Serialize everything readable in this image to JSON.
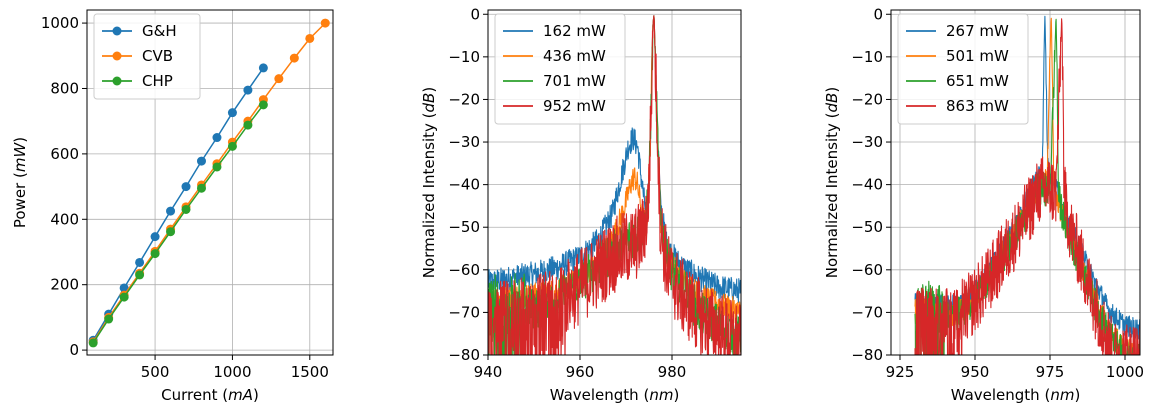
{
  "colors": {
    "blue": "#1f77b4",
    "orange": "#ff7f0e",
    "green": "#2ca02c",
    "red": "#d62728"
  },
  "chart_data": [
    {
      "type": "line",
      "title": "",
      "xlabel_main": "Current (",
      "xlabel_unit": "mA",
      "xlabel_close": ")",
      "ylabel_main": "Power (",
      "ylabel_unit": "mW",
      "ylabel_close": ")",
      "xlim": [
        60,
        1650
      ],
      "ylim": [
        -15,
        1040
      ],
      "xticks": [
        500,
        1000,
        1500
      ],
      "yticks": [
        0,
        200,
        400,
        600,
        800,
        1000
      ],
      "grid": true,
      "legend": "top-left",
      "markers": true,
      "series": [
        {
          "name": "G&H",
          "color": "#1f77b4",
          "x": [
            100,
            200,
            300,
            400,
            500,
            600,
            700,
            800,
            900,
            1000,
            1100,
            1200
          ],
          "y": [
            30,
            110,
            190,
            268,
            347,
            425,
            500,
            578,
            650,
            726,
            795,
            863
          ]
        },
        {
          "name": "CVB",
          "color": "#ff7f0e",
          "x": [
            100,
            200,
            300,
            400,
            500,
            600,
            700,
            800,
            900,
            1000,
            1100,
            1200,
            1300,
            1400,
            1500,
            1600
          ],
          "y": [
            25,
            100,
            168,
            235,
            302,
            370,
            438,
            505,
            570,
            636,
            700,
            766,
            830,
            893,
            953,
            1000
          ]
        },
        {
          "name": "CHP",
          "color": "#2ca02c",
          "x": [
            100,
            200,
            300,
            400,
            500,
            600,
            700,
            800,
            900,
            1000,
            1100,
            1200
          ],
          "y": [
            22,
            95,
            162,
            230,
            295,
            362,
            430,
            495,
            560,
            623,
            688,
            750
          ]
        }
      ]
    },
    {
      "type": "line",
      "title": "",
      "xlabel_main": "Wavelength (",
      "xlabel_unit": "nm",
      "xlabel_close": ")",
      "ylabel_main": "Normalized Intensity (",
      "ylabel_unit": "dB",
      "ylabel_close": ")",
      "xlim": [
        940,
        995
      ],
      "ylim": [
        -80,
        1
      ],
      "xticks": [
        940,
        960,
        980
      ],
      "yticks": [
        0,
        -10,
        -20,
        -30,
        -40,
        -50,
        -60,
        -70,
        -80
      ],
      "grid": true,
      "legend": "top-left",
      "markers": false,
      "noisy": true,
      "series": [
        {
          "name": "162 mW",
          "color": "#1f77b4",
          "noise": 3,
          "x": [
            940,
            945,
            950,
            955,
            960,
            964,
            967,
            969,
            970.5,
            971.5,
            972.5,
            973.5,
            974.5,
            975.3,
            975.8,
            976.1,
            976.6,
            977.5,
            979,
            982,
            986,
            990,
            995
          ],
          "y": [
            -63,
            -62,
            -61,
            -59.5,
            -57,
            -53,
            -47,
            -38,
            -31,
            -29,
            -31,
            -40,
            -48,
            -30,
            -3,
            0,
            -20,
            -45,
            -55,
            -59,
            -62,
            -64,
            -65
          ]
        },
        {
          "name": "436 mW",
          "color": "#ff7f0e",
          "noise": 3,
          "x": [
            940,
            945,
            950,
            955,
            960,
            964,
            967,
            969.5,
            971,
            971.8,
            972.5,
            973.5,
            974.5,
            975.3,
            975.8,
            976.1,
            976.6,
            977.5,
            979,
            982,
            986,
            990,
            995
          ],
          "y": [
            -67,
            -66.5,
            -66,
            -65,
            -62,
            -58,
            -53,
            -46,
            -40,
            -38,
            -40,
            -47,
            -50,
            -30,
            -3,
            0,
            -20,
            -48,
            -57,
            -62,
            -66,
            -68,
            -70
          ]
        },
        {
          "name": "701 mW",
          "color": "#2ca02c",
          "noise": 5,
          "noisyBelow": 948,
          "x": [
            940,
            945,
            950,
            955,
            960,
            964,
            967,
            970,
            972,
            973.5,
            974.8,
            975.5,
            975.9,
            976.1,
            976.6,
            977.5,
            979,
            982,
            986,
            990,
            995
          ],
          "y": [
            -70,
            -69.5,
            -69,
            -67,
            -63,
            -59,
            -56,
            -53,
            -52,
            -51,
            -45,
            -20,
            -2,
            0,
            -20,
            -48,
            -58,
            -64,
            -70,
            -73,
            -76
          ]
        },
        {
          "name": "952 mW",
          "color": "#d62728",
          "noise": 9,
          "noisyBelow": 957,
          "x": [
            940,
            945,
            950,
            955,
            960,
            964,
            967,
            970,
            972,
            973.5,
            974.8,
            975.5,
            975.9,
            976.1,
            976.6,
            977.5,
            979,
            982,
            986,
            990,
            995
          ],
          "y": [
            -72,
            -71,
            -70,
            -68,
            -64,
            -60,
            -57,
            -55,
            -54,
            -52,
            -46,
            -22,
            -2,
            0,
            -20,
            -50,
            -60,
            -66,
            -71,
            -74,
            -77
          ]
        }
      ]
    },
    {
      "type": "line",
      "title": "",
      "xlabel_main": "Wavelength (",
      "xlabel_unit": "nm",
      "xlabel_close": ")",
      "ylabel_main": "Normalized Intensity (",
      "ylabel_unit": "dB",
      "ylabel_close": ")",
      "xlim": [
        922,
        1005
      ],
      "ylim": [
        -80,
        1
      ],
      "xticks": [
        925,
        950,
        975,
        1000
      ],
      "yticks": [
        0,
        -10,
        -20,
        -30,
        -40,
        -50,
        -60,
        -70,
        -80
      ],
      "grid": true,
      "legend": "top-left",
      "markers": false,
      "noisy": true,
      "series": [
        {
          "name": "267 mW",
          "color": "#1f77b4",
          "noise": 2.5,
          "x": [
            930,
            935,
            940,
            945,
            950,
            955,
            960,
            965,
            968,
            970,
            971.5,
            972.5,
            973,
            973.3,
            973.6,
            974.2,
            975,
            977,
            980,
            985,
            990,
            995,
            1000,
            1005
          ],
          "y": [
            -68,
            -68,
            -68.5,
            -68,
            -65,
            -60,
            -54,
            -48,
            -42,
            -39,
            -37,
            -35,
            -10,
            0,
            -10,
            -35,
            -37,
            -40,
            -47,
            -55,
            -63,
            -70,
            -73,
            -74
          ]
        },
        {
          "name": "501 mW",
          "color": "#ff7f0e",
          "noise": 3,
          "x": [
            930,
            935,
            940,
            945,
            950,
            955,
            960,
            965,
            968,
            970,
            972,
            974,
            975,
            975.4,
            975.7,
            976.2,
            977,
            979,
            982,
            986,
            990,
            995,
            1000,
            1005
          ],
          "y": [
            -70,
            -70,
            -71,
            -70,
            -66,
            -61,
            -55,
            -49,
            -45,
            -42,
            -40,
            -39,
            -10,
            0,
            -10,
            -38,
            -42,
            -47,
            -52,
            -60,
            -67,
            -75,
            -79,
            -80
          ]
        },
        {
          "name": "651 mW",
          "color": "#2ca02c",
          "noise": 4,
          "noisyBelow": 940,
          "x": [
            930,
            935,
            940,
            945,
            950,
            955,
            960,
            965,
            968,
            970,
            972,
            975,
            976.6,
            977,
            977.3,
            977.8,
            978.5,
            980,
            983,
            987,
            990,
            995,
            1000,
            1005
          ],
          "y": [
            -72,
            -71,
            -72,
            -70,
            -67,
            -62,
            -56,
            -50,
            -45,
            -42,
            -41,
            -41,
            -10,
            0,
            -10,
            -42,
            -45,
            -49,
            -55,
            -62,
            -68,
            -76,
            -80,
            -80
          ]
        },
        {
          "name": "863 mW",
          "color": "#d62728",
          "noise": 8,
          "noisyBelow": 946,
          "x": [
            930,
            935,
            940,
            945,
            950,
            955,
            960,
            965,
            968,
            970,
            972,
            975,
            977,
            978.5,
            978.9,
            979.2,
            979.7,
            980.5,
            982,
            985,
            988,
            992,
            996,
            1000,
            1005
          ],
          "y": [
            -73,
            -73,
            -73,
            -71,
            -67,
            -62,
            -56,
            -50,
            -46,
            -43,
            -41,
            -41,
            -42,
            -10,
            0,
            -10,
            -42,
            -46,
            -51,
            -57,
            -64,
            -72,
            -80,
            -80,
            -80
          ]
        }
      ]
    }
  ]
}
